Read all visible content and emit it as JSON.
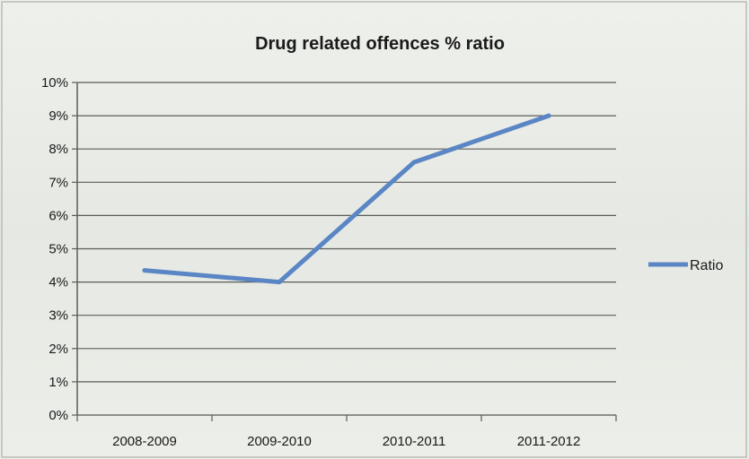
{
  "chart_data": {
    "type": "line",
    "title": "Drug related offences % ratio",
    "categories": [
      "2008-2009",
      "2009-2010",
      "2010-2011",
      "2011-2012"
    ],
    "series": [
      {
        "name": "Ratio",
        "values": [
          4.35,
          4.0,
          7.6,
          9.0
        ],
        "color": "#5b86c5"
      }
    ],
    "y_ticks": [
      "0%",
      "1%",
      "2%",
      "3%",
      "4%",
      "5%",
      "6%",
      "7%",
      "8%",
      "9%",
      "10%"
    ],
    "ylim": [
      0,
      10
    ],
    "y_unit": "%",
    "grid": true,
    "legend_position": "right"
  }
}
